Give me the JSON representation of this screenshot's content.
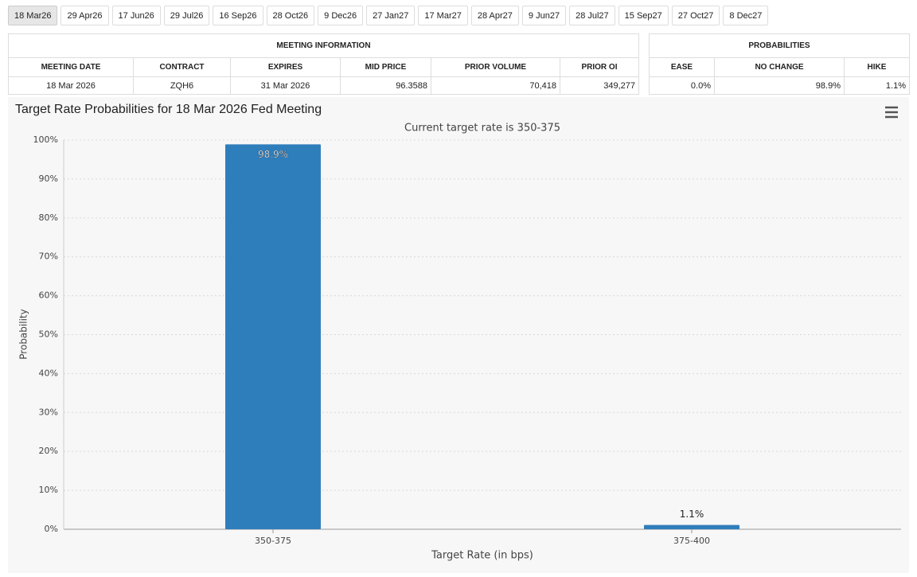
{
  "tabs": [
    "18 Mar26",
    "29 Apr26",
    "17 Jun26",
    "29 Jul26",
    "16 Sep26",
    "28 Oct26",
    "9 Dec26",
    "27 Jan27",
    "17 Mar27",
    "28 Apr27",
    "9 Jun27",
    "28 Jul27",
    "15 Sep27",
    "27 Oct27",
    "8 Dec27"
  ],
  "meeting_table": {
    "title": "MEETING INFORMATION",
    "headers": [
      "MEETING DATE",
      "CONTRACT",
      "EXPIRES",
      "MID PRICE",
      "PRIOR VOLUME",
      "PRIOR OI"
    ],
    "rows": [
      [
        "18 Mar 2026",
        "ZQH6",
        "31 Mar 2026",
        "96.3588",
        "70,418",
        "349,277"
      ]
    ]
  },
  "probabilities_table": {
    "title": "PROBABILITIES",
    "headers": [
      "EASE",
      "NO CHANGE",
      "HIKE"
    ],
    "rows": [
      [
        "0.0%",
        "98.9%",
        "1.1%"
      ]
    ]
  },
  "chart_data": {
    "type": "bar",
    "title": "Target Rate Probabilities for 18 Mar 2026 Fed Meeting",
    "subtitle": "Current target rate is 350-375",
    "x_label": "Target Rate (in bps)",
    "y_label": "Probability",
    "categories": [
      "350-375",
      "375-400"
    ],
    "values": [
      98.9,
      1.1
    ],
    "value_labels": [
      "98.9%",
      "1.1%"
    ],
    "color": "#2f7ebc",
    "ylim": [
      0,
      100
    ],
    "yticks": [
      {
        "value": 0,
        "label": "0%"
      },
      {
        "value": 10,
        "label": "10%"
      },
      {
        "value": 20,
        "label": "20%"
      },
      {
        "value": 30,
        "label": "30%"
      },
      {
        "value": 40,
        "label": "40%"
      },
      {
        "value": 50,
        "label": "50%"
      },
      {
        "value": 60,
        "label": "60%"
      },
      {
        "value": 70,
        "label": "70%"
      },
      {
        "value": 80,
        "label": "80%"
      },
      {
        "value": 90,
        "label": "90%"
      },
      {
        "value": 100,
        "label": "100%"
      }
    ],
    "grid": true
  }
}
